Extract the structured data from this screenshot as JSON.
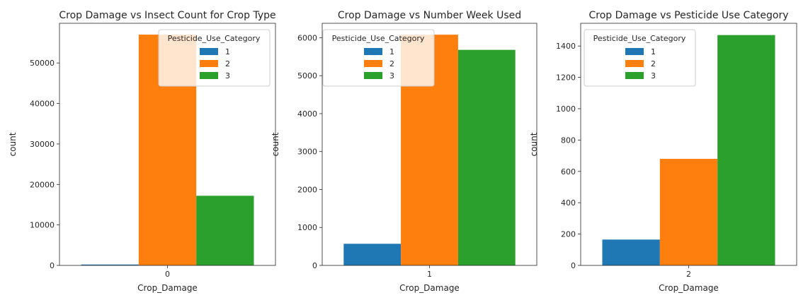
{
  "chart_data": [
    {
      "type": "bar",
      "title": "Crop Damage vs Insect Count for Crop Type",
      "xlabel": "Crop_Damage",
      "ylabel": "count",
      "categories": [
        "0"
      ],
      "hue_title": "Pesticide_Use_Category",
      "series": [
        {
          "name": "1",
          "values": [
            220
          ],
          "color": "#1f77b4"
        },
        {
          "name": "2",
          "values": [
            57000
          ],
          "color": "#ff7f0e"
        },
        {
          "name": "3",
          "values": [
            17200
          ],
          "color": "#2ca02c"
        }
      ],
      "ylim": [
        0,
        59800
      ],
      "yticks": [
        0,
        10000,
        20000,
        30000,
        40000,
        50000
      ],
      "ytick_labels": [
        "0",
        "10000",
        "20000",
        "30000",
        "40000",
        "50000"
      ],
      "grid": false,
      "legend_position": "upper right"
    },
    {
      "type": "bar",
      "title": "Crop Damage vs Number Week Used",
      "xlabel": "Crop_Damage",
      "ylabel": "count",
      "categories": [
        "1"
      ],
      "hue_title": "Pesticide_Use_Category",
      "series": [
        {
          "name": "1",
          "values": [
            570
          ],
          "color": "#1f77b4"
        },
        {
          "name": "2",
          "values": [
            6080
          ],
          "color": "#ff7f0e"
        },
        {
          "name": "3",
          "values": [
            5680
          ],
          "color": "#2ca02c"
        }
      ],
      "ylim": [
        0,
        6380
      ],
      "yticks": [
        0,
        1000,
        2000,
        3000,
        4000,
        5000,
        6000
      ],
      "ytick_labels": [
        "0",
        "1000",
        "2000",
        "3000",
        "4000",
        "5000",
        "6000"
      ],
      "grid": false,
      "legend_position": "upper left"
    },
    {
      "type": "bar",
      "title": "Crop Damage vs Pesticide Use Category",
      "xlabel": "Crop_Damage",
      "ylabel": "count",
      "categories": [
        "2"
      ],
      "hue_title": "Pesticide_Use_Category",
      "series": [
        {
          "name": "1",
          "values": [
            165
          ],
          "color": "#1f77b4"
        },
        {
          "name": "2",
          "values": [
            680
          ],
          "color": "#ff7f0e"
        },
        {
          "name": "3",
          "values": [
            1470
          ],
          "color": "#2ca02c"
        }
      ],
      "ylim": [
        0,
        1545
      ],
      "yticks": [
        0,
        200,
        400,
        600,
        800,
        1000,
        1200,
        1400
      ],
      "ytick_labels": [
        "0",
        "200",
        "400",
        "600",
        "800",
        "1000",
        "1200",
        "1400"
      ],
      "grid": false,
      "legend_position": "upper left"
    }
  ]
}
